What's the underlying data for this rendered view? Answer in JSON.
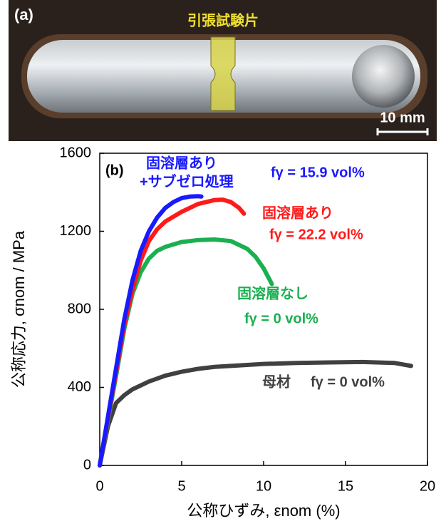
{
  "photo": {
    "label": "(a)",
    "specimen_label": "引張試験片",
    "scale_label": "10 mm"
  },
  "chart_data": {
    "type": "line",
    "xlabel": "公称ひずみ, εnom (%)",
    "ylabel": "公称応力, σnom / MPa",
    "xlim": [
      0,
      20
    ],
    "ylim": [
      0,
      1600
    ],
    "xticks": [
      0,
      5,
      10,
      15,
      20
    ],
    "yticks": [
      0,
      400,
      800,
      1200,
      1600
    ],
    "annotations": [
      {
        "text": "(b)",
        "color": "#000000"
      },
      {
        "text": "固溶層あり",
        "color": "#1a1aff"
      },
      {
        "text": "+サブゼロ処理",
        "color": "#1a1aff"
      },
      {
        "text": "fγ = 15.9 vol%",
        "color": "#1a1aff"
      },
      {
        "text": "固溶層あり",
        "color": "#ff1a1a"
      },
      {
        "text": "fγ = 22.2 vol%",
        "color": "#ff1a1a"
      },
      {
        "text": "固溶層なし",
        "color": "#1ab050"
      },
      {
        "text": "fγ = 0 vol%",
        "color": "#1ab050"
      },
      {
        "text": "母材",
        "color": "#404040"
      },
      {
        "text": "fγ = 0 vol%",
        "color": "#404040"
      }
    ],
    "series": [
      {
        "color": "#404040",
        "x": [
          0,
          0.5,
          1,
          1.5,
          2,
          3,
          4,
          5,
          6,
          7,
          8,
          10,
          12,
          14,
          16,
          18,
          19
        ],
        "values": [
          0,
          200,
          320,
          360,
          390,
          430,
          460,
          480,
          495,
          505,
          510,
          520,
          525,
          528,
          530,
          525,
          510
        ]
      },
      {
        "color": "#1ab050",
        "x": [
          0,
          1,
          1.5,
          2,
          2.5,
          3,
          3.5,
          4,
          5,
          6,
          7,
          8,
          9,
          9.5,
          10,
          10.5
        ],
        "values": [
          0,
          460,
          700,
          880,
          990,
          1060,
          1100,
          1120,
          1145,
          1155,
          1158,
          1150,
          1110,
          1070,
          1010,
          930
        ]
      },
      {
        "color": "#ff1a1a",
        "x": [
          0,
          1,
          1.5,
          2,
          2.5,
          3,
          3.5,
          4,
          5,
          6,
          7,
          7.5,
          8,
          8.5,
          8.8
        ],
        "values": [
          0,
          480,
          720,
          900,
          1050,
          1150,
          1210,
          1250,
          1300,
          1340,
          1360,
          1362,
          1350,
          1320,
          1290
        ]
      },
      {
        "color": "#1a1aff",
        "x": [
          0,
          0.5,
          1,
          1.5,
          2,
          2.5,
          3,
          3.5,
          4,
          4.5,
          5,
          5.5,
          6,
          6.2
        ],
        "values": [
          0,
          250,
          500,
          750,
          950,
          1100,
          1200,
          1270,
          1320,
          1350,
          1370,
          1378,
          1380,
          1378
        ]
      }
    ]
  }
}
